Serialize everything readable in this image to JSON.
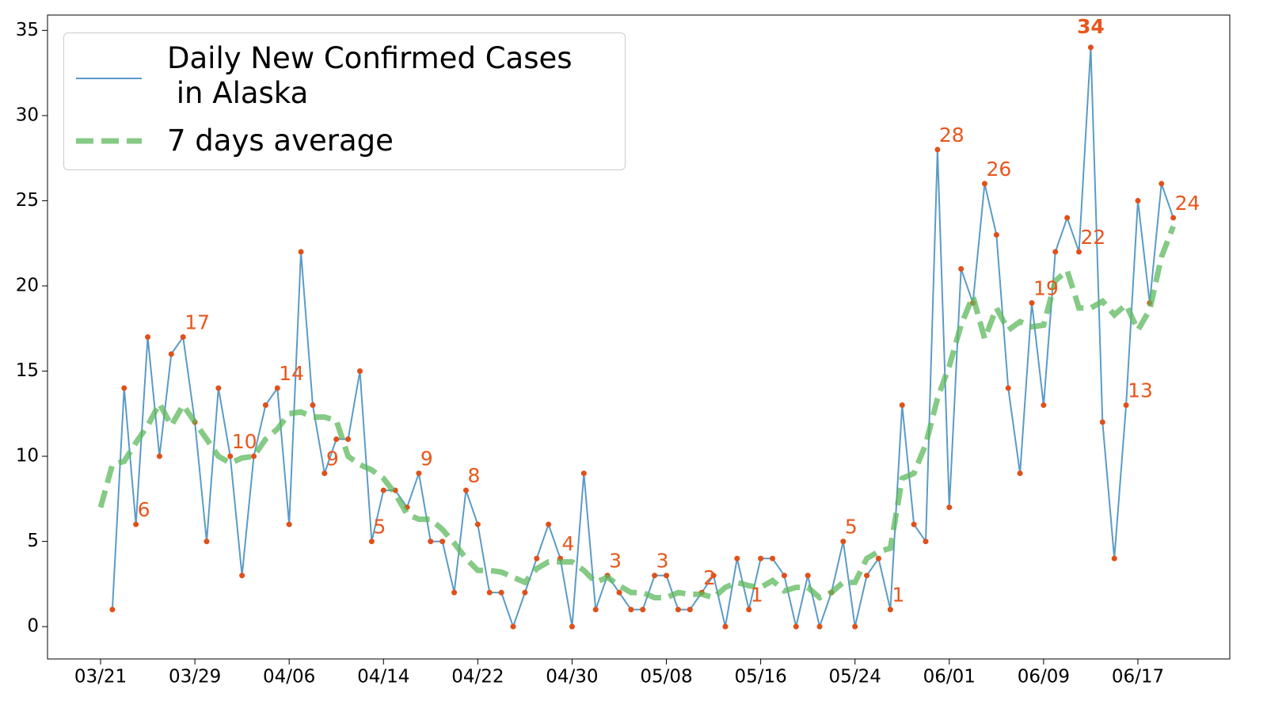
{
  "chart_data": {
    "type": "line",
    "categories": [
      "03/21",
      "03/22",
      "03/23",
      "03/24",
      "03/25",
      "03/26",
      "03/27",
      "03/28",
      "03/29",
      "03/30",
      "03/31",
      "04/01",
      "04/02",
      "04/03",
      "04/04",
      "04/05",
      "04/06",
      "04/07",
      "04/08",
      "04/09",
      "04/10",
      "04/11",
      "04/12",
      "04/13",
      "04/14",
      "04/15",
      "04/16",
      "04/17",
      "04/18",
      "04/19",
      "04/20",
      "04/21",
      "04/22",
      "04/23",
      "04/24",
      "04/25",
      "04/26",
      "04/27",
      "04/28",
      "04/29",
      "04/30",
      "05/01",
      "05/02",
      "05/03",
      "05/04",
      "05/05",
      "05/06",
      "05/07",
      "05/08",
      "05/09",
      "05/10",
      "05/11",
      "05/12",
      "05/13",
      "05/14",
      "05/15",
      "05/16",
      "05/17",
      "05/18",
      "05/19",
      "05/20",
      "05/21",
      "05/22",
      "05/23",
      "05/24",
      "05/25",
      "05/26",
      "05/27",
      "05/28",
      "05/29",
      "05/30",
      "05/31",
      "06/01",
      "06/02",
      "06/03",
      "06/04",
      "06/05",
      "06/06",
      "06/07",
      "06/08",
      "06/09",
      "06/10",
      "06/11",
      "06/12",
      "06/13",
      "06/14",
      "06/15",
      "06/16",
      "06/17",
      "06/18",
      "06/19",
      "06/20"
    ],
    "series": [
      {
        "name": "Daily New Confirmed Cases\n in Alaska",
        "color": "#5b9bc6",
        "marker_color": "#e0501a",
        "values": [
          null,
          1,
          14,
          6,
          17,
          10,
          16,
          17,
          12,
          5,
          14,
          10,
          3,
          10,
          13,
          14,
          6,
          22,
          13,
          9,
          11,
          11,
          15,
          5,
          8,
          8,
          7,
          9,
          5,
          5,
          2,
          8,
          6,
          2,
          2,
          0,
          2,
          4,
          6,
          4,
          0,
          9,
          1,
          3,
          2,
          1,
          1,
          3,
          3,
          1,
          1,
          2,
          3,
          0,
          4,
          1,
          4,
          4,
          3,
          0,
          3,
          0,
          2,
          5,
          0,
          3,
          4,
          1,
          13,
          6,
          5,
          28,
          7,
          21,
          19,
          26,
          23,
          14,
          9,
          19,
          13,
          22,
          24,
          22,
          34,
          12,
          4,
          13,
          25,
          19,
          26,
          24
        ],
        "value_labels": [
          null,
          null,
          null,
          "6",
          null,
          null,
          null,
          "17",
          null,
          null,
          null,
          "10",
          null,
          null,
          null,
          "14",
          null,
          null,
          null,
          "9",
          null,
          null,
          null,
          "5",
          null,
          null,
          null,
          "9",
          null,
          null,
          null,
          "8",
          null,
          null,
          null,
          null,
          null,
          null,
          null,
          "4",
          null,
          null,
          null,
          "3",
          null,
          null,
          null,
          "3",
          null,
          null,
          null,
          "2",
          null,
          null,
          null,
          "1",
          null,
          null,
          null,
          null,
          null,
          null,
          null,
          "5",
          null,
          null,
          null,
          "1",
          null,
          null,
          null,
          "28",
          null,
          null,
          null,
          "26",
          null,
          null,
          null,
          "19",
          null,
          null,
          null,
          "22",
          "34",
          null,
          null,
          "13",
          null,
          null,
          null,
          "24"
        ]
      },
      {
        "name": "7 days average",
        "color": "#5cb85c",
        "dashed": true,
        "values": [
          7,
          9.5,
          9.7,
          10.8,
          11.8,
          13.1,
          11.8,
          13,
          12,
          11,
          10,
          9.6,
          9.9,
          10,
          11,
          11.6,
          12.5,
          12.6,
          12.3,
          12.3,
          12.1,
          10,
          9.5,
          9.2,
          8.7,
          7.8,
          6.6,
          6.3,
          6.3,
          5.7,
          4.9,
          4,
          3.3,
          3.3,
          3.2,
          2.9,
          2.6,
          3.4,
          3.8,
          3.8,
          3.8,
          3.3,
          2.6,
          2.9,
          2.4,
          2,
          2,
          1.7,
          1.7,
          2,
          1.9,
          1.9,
          1.7,
          2.3,
          2.6,
          2.4,
          2.3,
          2.7,
          2.1,
          2.3,
          2.3,
          1.7,
          2,
          2.6,
          2.6,
          4,
          4.4,
          4.6,
          8.7,
          9,
          10.7,
          13.4,
          15.3,
          17.7,
          19.4,
          16.9,
          18.7,
          17.4,
          17.9,
          17.6,
          17.7,
          20.3,
          20.9,
          18.7,
          18.7,
          19.1,
          18.3,
          18.9,
          17.4,
          18.6,
          21.7,
          23.5
        ]
      }
    ],
    "xticks": [
      "03/21",
      "03/29",
      "04/06",
      "04/14",
      "04/22",
      "04/30",
      "05/08",
      "05/16",
      "05/24",
      "06/01",
      "06/09",
      "06/17"
    ],
    "ylim": [
      -1.9,
      35.9
    ],
    "yticks": [
      0,
      5,
      10,
      15,
      20,
      25,
      30,
      35
    ],
    "label_color": "#e8561c",
    "legend": "upper left"
  }
}
